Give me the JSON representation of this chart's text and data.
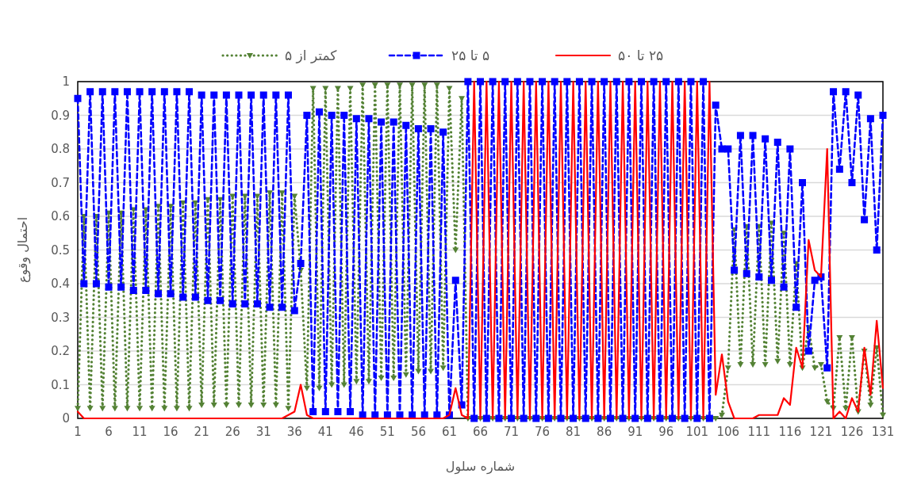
{
  "chart_data": {
    "type": "line",
    "xlabel": "شماره سلول",
    "ylabel": "احتمال وقوع",
    "x": [
      1,
      2,
      3,
      4,
      5,
      6,
      7,
      8,
      9,
      10,
      11,
      12,
      13,
      14,
      15,
      16,
      17,
      18,
      19,
      20,
      21,
      22,
      23,
      24,
      25,
      26,
      27,
      28,
      29,
      30,
      31,
      32,
      33,
      34,
      35,
      36,
      37,
      38,
      39,
      40,
      41,
      42,
      43,
      44,
      45,
      46,
      47,
      48,
      49,
      50,
      51,
      52,
      53,
      54,
      55,
      56,
      57,
      58,
      59,
      60,
      61,
      62,
      63,
      64,
      65,
      66,
      67,
      68,
      69,
      70,
      71,
      72,
      73,
      74,
      75,
      76,
      77,
      78,
      79,
      80,
      81,
      82,
      83,
      84,
      85,
      86,
      87,
      88,
      89,
      90,
      91,
      92,
      93,
      94,
      95,
      96,
      97,
      98,
      99,
      100,
      101,
      102,
      103,
      104,
      105,
      106,
      107,
      108,
      109,
      110,
      111,
      112,
      113,
      114,
      115,
      116,
      117,
      118,
      119,
      120,
      121,
      122,
      123,
      124,
      125,
      126,
      127,
      128,
      129,
      130,
      131
    ],
    "xlim": [
      1,
      131
    ],
    "xticks": [
      1,
      6,
      11,
      16,
      21,
      26,
      31,
      36,
      41,
      46,
      51,
      56,
      61,
      66,
      71,
      76,
      81,
      86,
      91,
      96,
      101,
      106,
      111,
      116,
      121,
      126,
      131
    ],
    "ylim": [
      0,
      1
    ],
    "yticks": [
      0,
      0.1,
      0.2,
      0.3,
      0.4,
      0.5,
      0.6,
      0.7,
      0.8,
      0.9,
      1
    ],
    "grid": "y",
    "legend": "top",
    "series": [
      {
        "name": "کمتر از ۵",
        "color": "#548235",
        "marker": "triangle",
        "line_style": "dotted",
        "values": [
          0.03,
          0.6,
          0.03,
          0.6,
          0.03,
          0.61,
          0.03,
          0.61,
          0.03,
          0.62,
          0.03,
          0.62,
          0.03,
          0.63,
          0.03,
          0.63,
          0.03,
          0.64,
          0.03,
          0.64,
          0.04,
          0.65,
          0.04,
          0.65,
          0.04,
          0.66,
          0.04,
          0.66,
          0.04,
          0.66,
          0.04,
          0.67,
          0.04,
          0.67,
          0.03,
          0.66,
          0.44,
          0.09,
          0.98,
          0.09,
          0.98,
          0.1,
          0.98,
          0.1,
          0.98,
          0.11,
          0.99,
          0.11,
          0.99,
          0.12,
          0.99,
          0.12,
          0.99,
          0.13,
          0.99,
          0.14,
          0.99,
          0.14,
          0.99,
          0.15,
          0.98,
          0.5,
          0.95,
          0,
          0,
          0,
          0,
          0,
          0,
          0,
          0,
          0,
          0,
          0,
          0,
          0,
          0,
          0,
          0,
          0,
          0,
          0,
          0,
          0,
          0,
          0,
          0,
          0,
          0,
          0,
          0,
          0,
          0,
          0,
          0,
          0,
          0,
          0,
          0,
          0,
          0,
          0,
          0,
          0,
          0.01,
          0.15,
          0.56,
          0.16,
          0.57,
          0.16,
          0.57,
          0.16,
          0.58,
          0.17,
          0.55,
          0.16,
          0.46,
          0.15,
          0.27,
          0.15,
          0.16,
          0.05,
          0.03,
          0.24,
          0.03,
          0.24,
          0.02,
          0.2,
          0.04,
          0.21,
          0.01
        ]
      },
      {
        "name": "۵ تا ۲۵",
        "color": "#0000ff",
        "marker": "square",
        "line_style": "dashed",
        "values": [
          0.95,
          0.4,
          0.97,
          0.4,
          0.97,
          0.39,
          0.97,
          0.39,
          0.97,
          0.38,
          0.97,
          0.38,
          0.97,
          0.37,
          0.97,
          0.37,
          0.97,
          0.36,
          0.97,
          0.36,
          0.96,
          0.35,
          0.96,
          0.35,
          0.96,
          0.34,
          0.96,
          0.34,
          0.96,
          0.34,
          0.96,
          0.33,
          0.96,
          0.33,
          0.96,
          0.32,
          0.46,
          0.9,
          0.02,
          0.91,
          0.02,
          0.9,
          0.02,
          0.9,
          0.02,
          0.89,
          0.01,
          0.89,
          0.01,
          0.88,
          0.01,
          0.88,
          0.01,
          0.87,
          0.01,
          0.86,
          0.01,
          0.86,
          0.01,
          0.85,
          0.01,
          0.41,
          0.04,
          1,
          0,
          1,
          0,
          1,
          0,
          1,
          0,
          1,
          0,
          1,
          0,
          1,
          0,
          1,
          0,
          1,
          0,
          1,
          0,
          1,
          0,
          1,
          0,
          1,
          0,
          1,
          0,
          1,
          0,
          1,
          0,
          1,
          0,
          1,
          0,
          1,
          0,
          1,
          0,
          0.93,
          0.8,
          0.8,
          0.44,
          0.84,
          0.43,
          0.84,
          0.42,
          0.83,
          0.41,
          0.82,
          0.39,
          0.8,
          0.33,
          0.7,
          0.2,
          0.41,
          0.42,
          0.15,
          0.97,
          0.74,
          0.97,
          0.7,
          0.96,
          0.59,
          0.89,
          0.5,
          0.9
        ]
      },
      {
        "name": "۲۵ تا ۵۰",
        "color": "#ff0000",
        "marker": "none",
        "line_style": "solid",
        "values": [
          0.02,
          0,
          0,
          0,
          0,
          0,
          0,
          0,
          0,
          0,
          0,
          0,
          0,
          0,
          0,
          0,
          0,
          0,
          0,
          0,
          0,
          0,
          0,
          0,
          0,
          0,
          0,
          0,
          0,
          0,
          0,
          0,
          0,
          0,
          0.01,
          0.02,
          0.1,
          0.01,
          0,
          0,
          0,
          0,
          0,
          0,
          0,
          0,
          0,
          0,
          0,
          0,
          0,
          0,
          0,
          0,
          0,
          0,
          0,
          0,
          0,
          0,
          0.01,
          0.09,
          0.01,
          0,
          1,
          0,
          1,
          0,
          1,
          0,
          1,
          0,
          1,
          0,
          1,
          0,
          1,
          0,
          1,
          0,
          1,
          0,
          1,
          0,
          1,
          0,
          1,
          0,
          1,
          0,
          1,
          0,
          1,
          0,
          1,
          0,
          1,
          0,
          1,
          0,
          1,
          0,
          1,
          0.07,
          0.19,
          0.05,
          0,
          0,
          0,
          0,
          0.01,
          0.01,
          0.01,
          0.01,
          0.06,
          0.04,
          0.21,
          0.15,
          0.53,
          0.44,
          0.42,
          0.8,
          0,
          0.02,
          0,
          0.06,
          0.02,
          0.21,
          0.07,
          0.29,
          0.09
        ]
      }
    ]
  }
}
